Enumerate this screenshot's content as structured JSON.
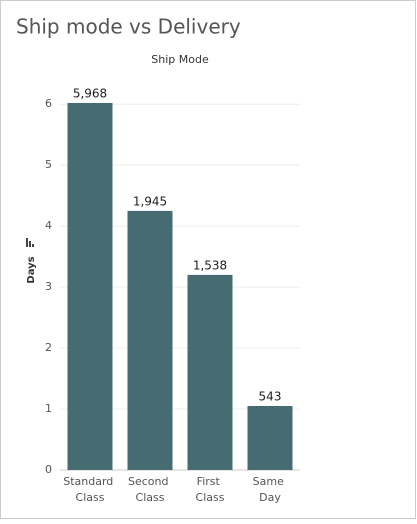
{
  "chart_data": {
    "type": "bar",
    "title": "Ship mode vs Delivery",
    "header": "Ship Mode",
    "y_label": "Days",
    "categories": [
      "Standard Class",
      "Second Class",
      "First Class",
      "Same Day"
    ],
    "values": [
      6.02,
      4.25,
      3.2,
      1.05
    ],
    "bar_labels": [
      {
        "value": 5968,
        "label": "5,968"
      },
      {
        "value": 1945,
        "label": "1,945"
      },
      {
        "value": 1538,
        "label": "1,538"
      },
      {
        "value": 543,
        "label": "543"
      }
    ],
    "color": "#466b71",
    "ylim": [
      0,
      6.2
    ],
    "yticks": [
      0,
      1,
      2,
      3,
      4,
      5,
      6
    ],
    "grid": true
  }
}
